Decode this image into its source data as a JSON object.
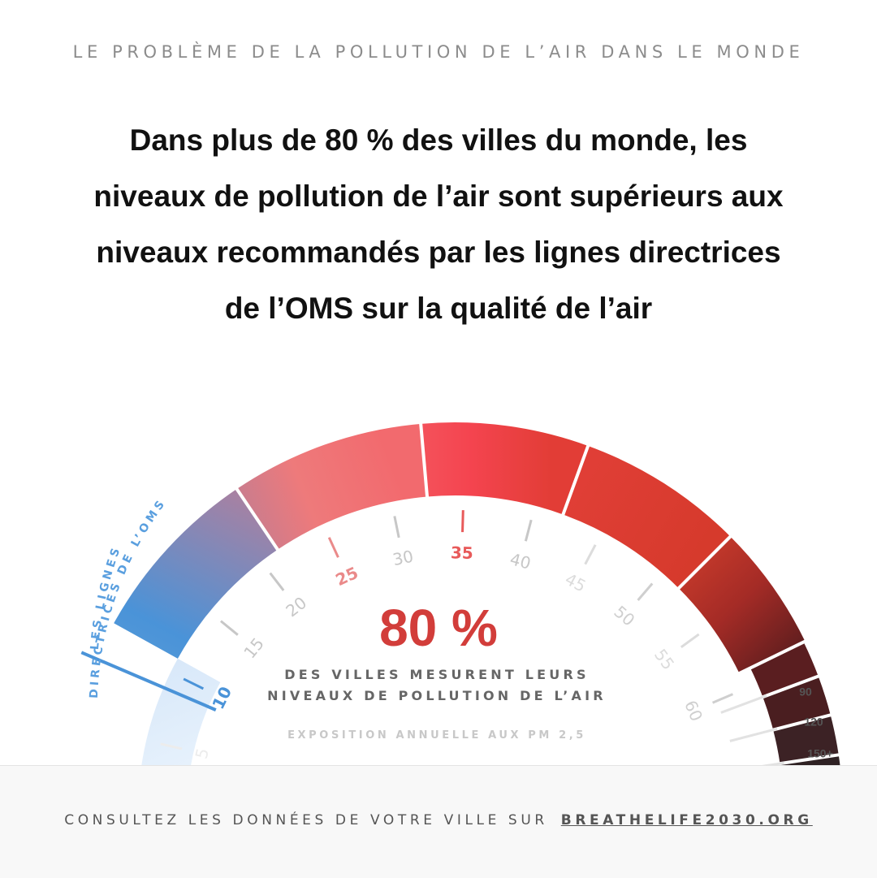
{
  "header": {
    "kicker": "LE PROBLÈME DE LA POLLUTION DE L’AIR DANS LE MONDE",
    "headline_lines": [
      "Dans plus de 80 % des villes du monde, les",
      "niveaux de pollution de l’air sont supérieurs aux",
      "niveaux recommandés par les lignes directrices",
      "de l’OMS sur la qualité de l’air"
    ]
  },
  "gauge": {
    "guideline_label_lines": [
      "LES LIGNES",
      "DIRECTRICES DE L’OMS"
    ],
    "guideline_value": 10,
    "highlight": {
      "value": "80 %",
      "caption_lines": [
        "DES VILLES MESURENT LEURS",
        "NIVEAUX DE POLLUTION DE L’AIR"
      ],
      "subcaption": "EXPOSITION ANNUELLE AUX PM 2,5"
    },
    "inner_ticks": [
      {
        "label": "5",
        "value": 5,
        "color": "#ececec"
      },
      {
        "label": "10",
        "value": 10,
        "color": "#4a93d8"
      },
      {
        "label": "15",
        "value": 15,
        "color": "#c7c7c7"
      },
      {
        "label": "20",
        "value": 20,
        "color": "#c7c7c7"
      },
      {
        "label": "25",
        "value": 25,
        "color": "#ea8a8a"
      },
      {
        "label": "30",
        "value": 30,
        "color": "#c7c7c7"
      },
      {
        "label": "35",
        "value": 35,
        "color": "#e85a5a"
      },
      {
        "label": "40",
        "value": 40,
        "color": "#c7c7c7"
      },
      {
        "label": "45",
        "value": 45,
        "color": "#dcdcdc"
      },
      {
        "label": "50",
        "value": 50,
        "color": "#cfcfcf"
      },
      {
        "label": "55",
        "value": 55,
        "color": "#dcdcdc"
      },
      {
        "label": "60",
        "value": 60,
        "color": "#cfcfcf"
      }
    ],
    "outer_ticks": [
      "90",
      "120",
      "150+"
    ],
    "colors": {
      "blue": "#4a93d8",
      "pale_blue": "#dbeafb",
      "coral": "#f07a78",
      "red": "#f24a55",
      "dark_red": "#6e1d1e",
      "darkest": "#2f2224"
    }
  },
  "footer": {
    "prefix": "CONSULTEZ LES DONNÉES DE VOTRE VILLE SUR",
    "link": "BREATHELIFE2030.ORG"
  }
}
